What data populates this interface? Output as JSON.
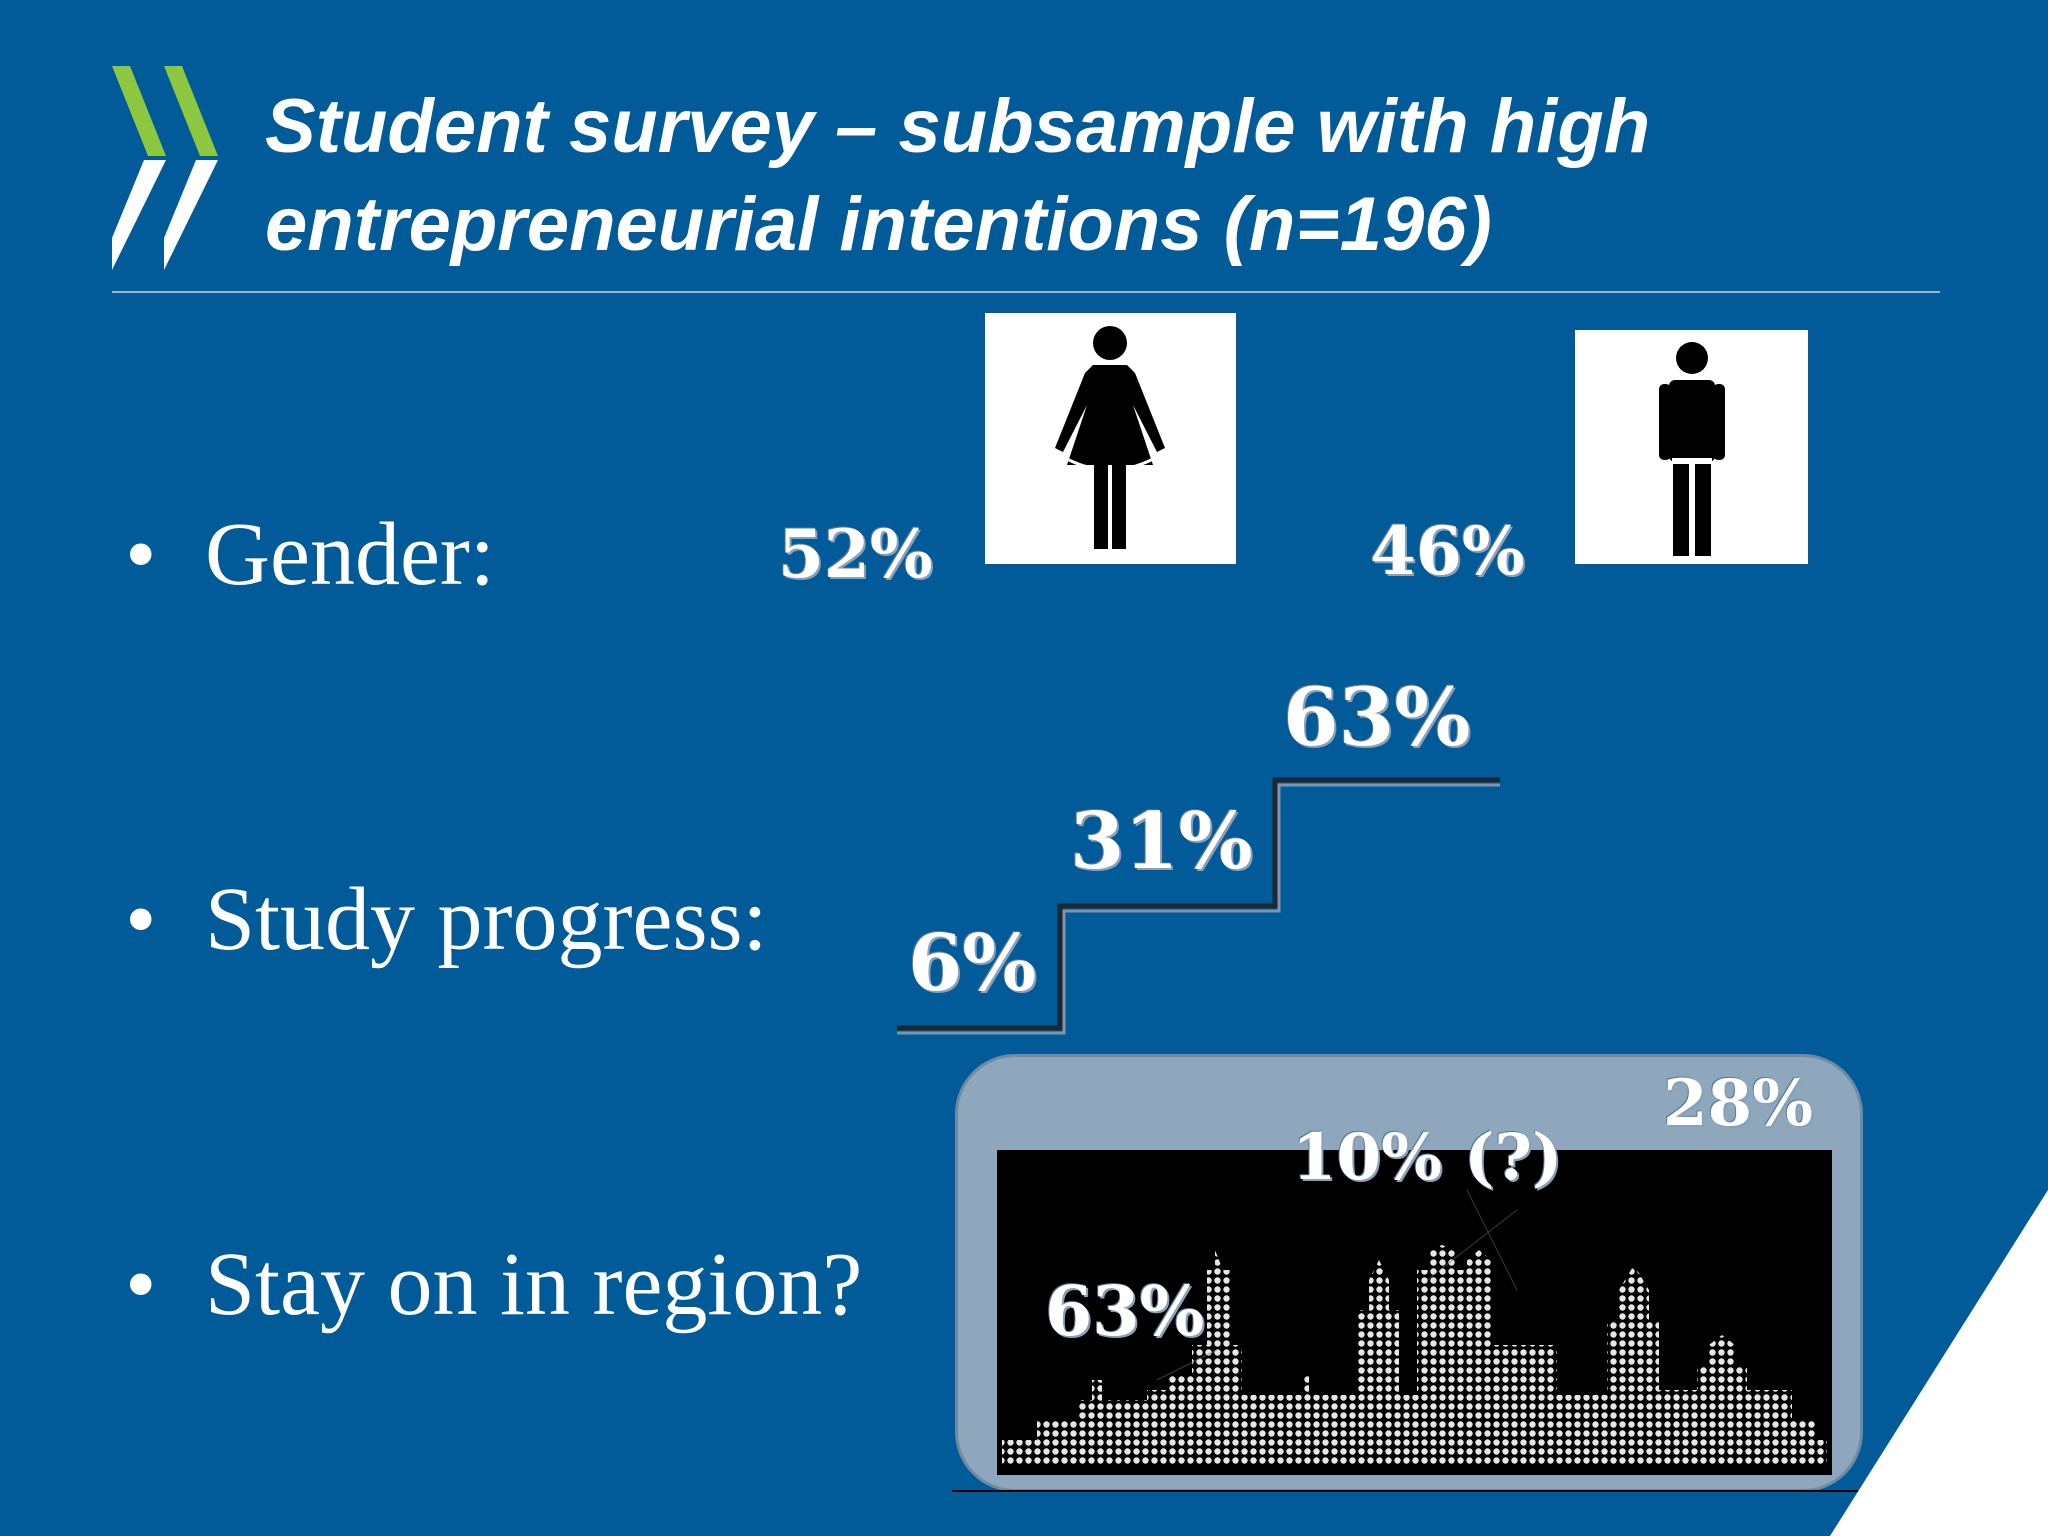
{
  "title": {
    "line1": "Student survey – subsample with high",
    "line2": "entrepreneurial intentions (n=196)"
  },
  "bullets": {
    "gender": "Gender:",
    "study_progress": "Study progress:",
    "stay_region": "Stay on in region?"
  },
  "gender": {
    "female_pct": "52%",
    "male_pct": "46%",
    "female_icon": "female-figure-icon",
    "male_icon": "male-figure-icon"
  },
  "study_progress": {
    "step1": "6%",
    "step2": "31%",
    "step3": "63%"
  },
  "region": {
    "stay_pct": "63%",
    "unknown_pct": "10% (?)",
    "leave_pct": "28%",
    "image": "city-skyline-icon"
  },
  "colors": {
    "background": "#005b98",
    "logo_green": "#8dc63f",
    "text": "#ffffff"
  }
}
